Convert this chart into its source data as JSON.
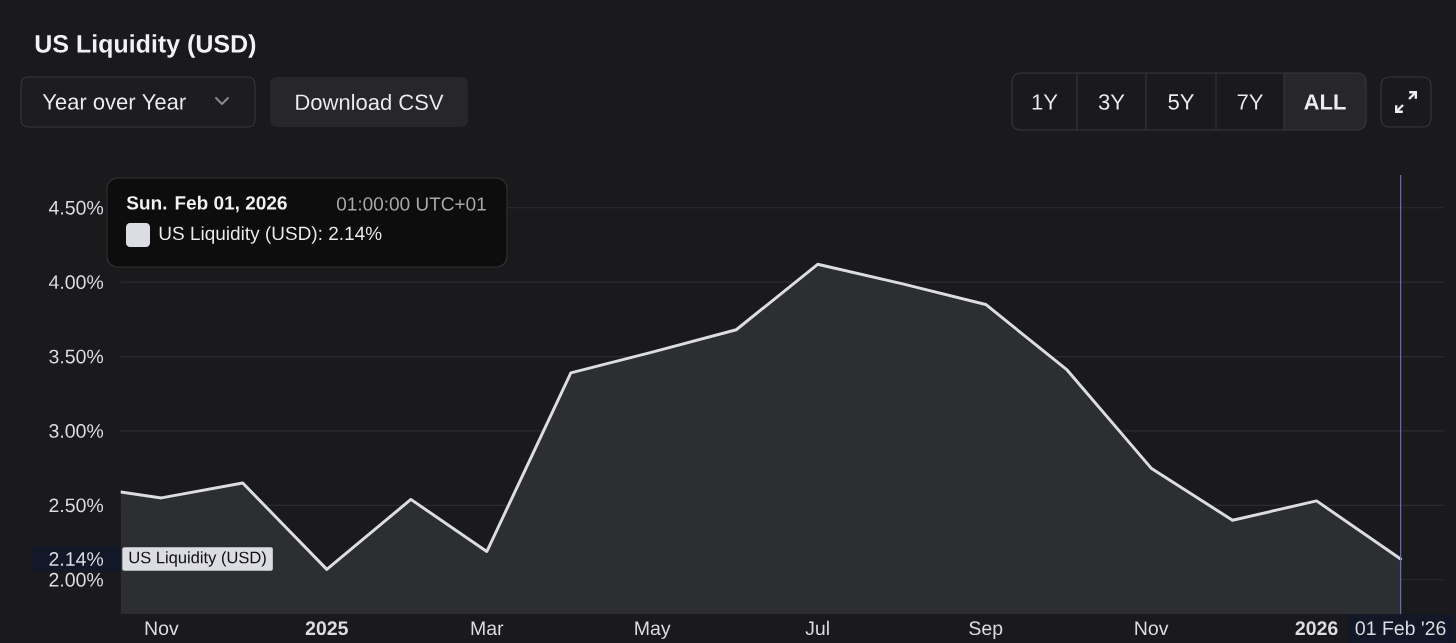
{
  "chart_data": {
    "type": "area",
    "title": "US Liquidity (USD)",
    "x": [
      "2024-10-17",
      "2024-11-01",
      "2024-12-01",
      "2025-01-01",
      "2025-02-01",
      "2025-03-01",
      "2025-04-01",
      "2025-05-01",
      "2025-06-01",
      "2025-07-01",
      "2025-08-01",
      "2025-09-01",
      "2025-10-01",
      "2025-11-01",
      "2025-12-01",
      "2026-01-01",
      "2026-02-01"
    ],
    "series": [
      {
        "name": "US Liquidity (USD)",
        "color": "#dcdde3",
        "values": [
          2.59,
          2.55,
          2.65,
          2.07,
          2.54,
          2.19,
          3.39,
          3.53,
          3.68,
          4.12,
          3.99,
          3.85,
          3.41,
          2.75,
          2.4,
          2.53,
          2.14
        ]
      }
    ],
    "xlim": [
      "2024-10-17",
      "2026-02-17"
    ],
    "xticks": [
      {
        "value": "2024-11-01",
        "label": "Nov"
      },
      {
        "value": "2025-01-01",
        "label": "2025"
      },
      {
        "value": "2025-03-01",
        "label": "Mar"
      },
      {
        "value": "2025-05-01",
        "label": "May"
      },
      {
        "value": "2025-07-01",
        "label": "Jul"
      },
      {
        "value": "2025-09-01",
        "label": "Sep"
      },
      {
        "value": "2025-11-01",
        "label": "Nov"
      },
      {
        "value": "2026-01-01",
        "label": "2026"
      }
    ],
    "ylim": [
      1.77,
      4.72
    ],
    "yticks": [
      {
        "value": 2.0,
        "label": "2.00%"
      },
      {
        "value": 2.5,
        "label": "2.50%"
      },
      {
        "value": 3.0,
        "label": "3.00%"
      },
      {
        "value": 3.5,
        "label": "3.50%"
      },
      {
        "value": 4.0,
        "label": "4.00%"
      },
      {
        "value": 4.5,
        "label": "4.50%"
      }
    ],
    "grid": "y",
    "ref_lines": [
      {
        "axis": "x",
        "value": "2026-02-01",
        "label": "01 Feb '26",
        "color": "#6b70a0"
      }
    ],
    "annotations": [
      "Year over Year",
      "Download CSV",
      "1Y",
      "3Y",
      "5Y",
      "7Y",
      "ALL",
      "Sun. Feb 01, 2026",
      "01:00:00 UTC+01",
      "US Liquidity (USD): 2.14%",
      "2.14%"
    ]
  }
}
